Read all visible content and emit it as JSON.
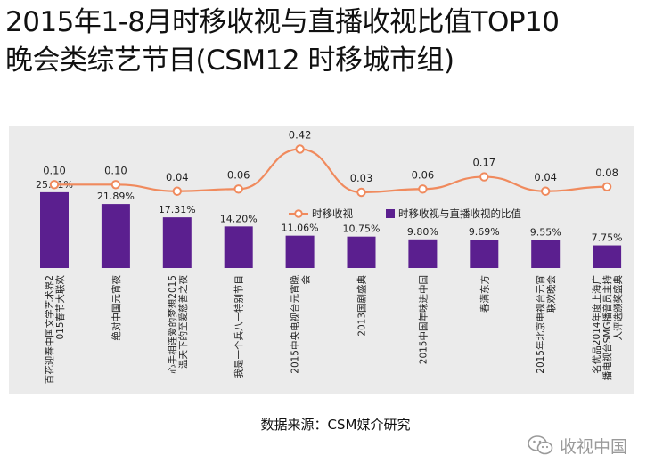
{
  "title": {
    "line1": "2015年1-8月时移收视与直播收视比值TOP10",
    "line2": "晚会类综艺节目(CSM12 时移城市组)"
  },
  "chart_data": {
    "type": "bar",
    "categories": [
      "百花迎春中国文学艺术界2015春节大联欢",
      "绝对中国元宵夜",
      "心手相连爱的梦想2015温天下的至爱慈善之夜",
      "我是一个兵八一特别节目",
      "2015中央电视台元宵晚会",
      "2013国剧盛典",
      "2015中国年味进中国",
      "春满东方",
      "2015年北京电视台元宵联欢晚会",
      "名优品2014年度上海广播电视台SMG播音员主持人评选颁奖盛典"
    ],
    "series": [
      {
        "name": "时移收视",
        "type": "line",
        "color": "#f08a5d",
        "values": [
          0.1,
          0.1,
          0.04,
          0.06,
          0.42,
          0.03,
          0.06,
          0.17,
          0.04,
          0.08
        ],
        "labels": [
          "0.10",
          "0.10",
          "0.04",
          "0.06",
          "0.42",
          "0.03",
          "0.06",
          "0.17",
          "0.04",
          "0.08"
        ]
      },
      {
        "name": "时移收视与直播收视的比值",
        "type": "bar",
        "color": "#5b1f8f",
        "values": [
          25.91,
          21.89,
          17.31,
          14.2,
          11.06,
          10.75,
          9.8,
          9.69,
          9.55,
          7.75
        ],
        "labels": [
          "25.91%",
          "21.89%",
          "17.31%",
          "14.20%",
          "11.06%",
          "10.75%",
          "9.80%",
          "9.69%",
          "9.55%",
          "7.75%"
        ]
      }
    ],
    "legend_position": "middle-right",
    "grid": false
  },
  "source": "数据来源：CSM媒介研究",
  "watermark": "收视中国",
  "icons": {
    "watermark_icon": "wechat-icon"
  }
}
